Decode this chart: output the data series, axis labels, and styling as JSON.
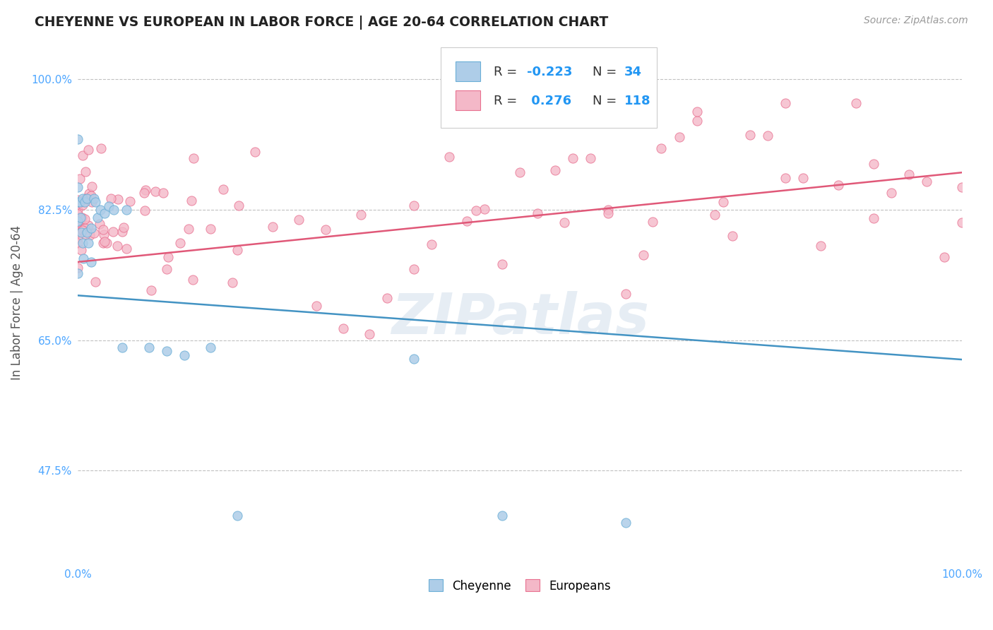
{
  "title": "CHEYENNE VS EUROPEAN IN LABOR FORCE | AGE 20-64 CORRELATION CHART",
  "source": "Source: ZipAtlas.com",
  "ylabel": "In Labor Force | Age 20-64",
  "xlim": [
    0.0,
    1.0
  ],
  "ylim": [
    0.35,
    1.05
  ],
  "yticks": [
    0.475,
    0.65,
    0.825,
    1.0
  ],
  "ytick_labels": [
    "47.5%",
    "65.0%",
    "82.5%",
    "100.0%"
  ],
  "xticks": [
    0.0,
    1.0
  ],
  "xtick_labels": [
    "0.0%",
    "100.0%"
  ],
  "watermark": "ZIPatlas",
  "blue_scatter_color": "#aecde8",
  "blue_edge_color": "#6aaed6",
  "pink_scatter_color": "#f4b8c8",
  "pink_edge_color": "#e87090",
  "trend_blue_color": "#4393c3",
  "trend_pink_color": "#e05878",
  "background_color": "#ffffff",
  "tick_color": "#4da6ff",
  "title_color": "#222222",
  "ylabel_color": "#555555",
  "source_color": "#999999",
  "cheyenne_seed": 7,
  "european_seed": 13
}
